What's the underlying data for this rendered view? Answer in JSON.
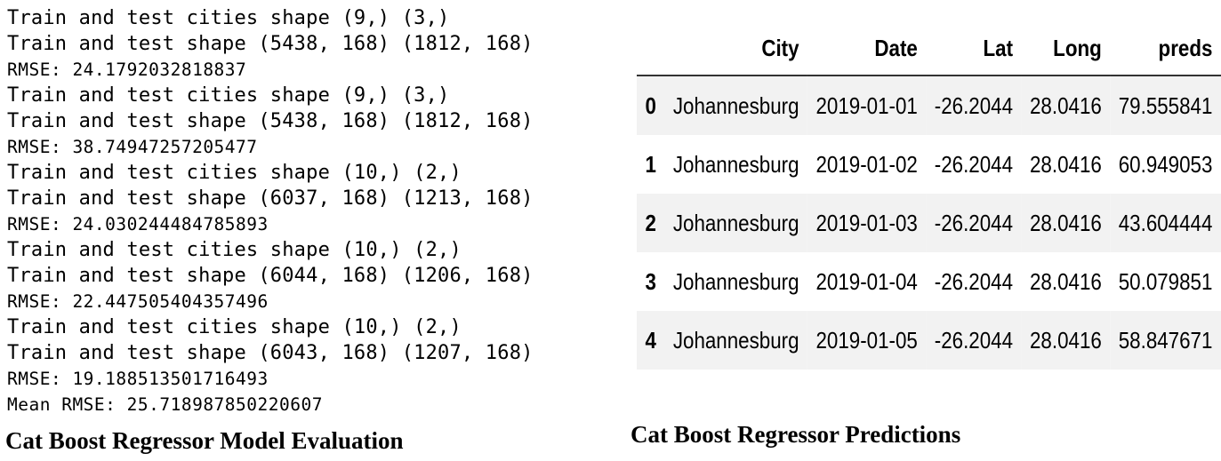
{
  "console": {
    "lines": [
      "Train and test cities shape (9,) (3,)",
      "Train and test shape (5438, 168) (1812, 168)",
      "RMSE: 24.1792032818837",
      "Train and test cities shape (9,) (3,)",
      "Train and test shape (5438, 168) (1812, 168)",
      "RMSE: 38.74947257205477",
      "Train and test cities shape (10,) (2,)",
      "Train and test shape (6037, 168) (1213, 168)",
      "RMSE: 24.030244484785893",
      "Train and test cities shape (10,) (2,)",
      "Train and test shape (6044, 168) (1206, 168)",
      "RMSE: 22.447505404357496",
      "Train and test cities shape (10,) (2,)",
      "Train and test shape (6043, 168) (1207, 168)",
      "RMSE: 19.188513501716493",
      "Mean RMSE: 25.718987850220607"
    ]
  },
  "captions": {
    "left": "Cat Boost Regressor Model Evaluation",
    "right": "Cat Boost Regressor Predictions"
  },
  "table": {
    "columns": [
      "",
      "City",
      "Date",
      "Lat",
      "Long",
      "preds"
    ],
    "rows": [
      {
        "index": "0",
        "City": "Johannesburg",
        "Date": "2019-01-01",
        "Lat": "-26.2044",
        "Long": "28.0416",
        "preds": "79.555841"
      },
      {
        "index": "1",
        "City": "Johannesburg",
        "Date": "2019-01-02",
        "Lat": "-26.2044",
        "Long": "28.0416",
        "preds": "60.949053"
      },
      {
        "index": "2",
        "City": "Johannesburg",
        "Date": "2019-01-03",
        "Lat": "-26.2044",
        "Long": "28.0416",
        "preds": "43.604444"
      },
      {
        "index": "3",
        "City": "Johannesburg",
        "Date": "2019-01-04",
        "Lat": "-26.2044",
        "Long": "28.0416",
        "preds": "50.079851"
      },
      {
        "index": "4",
        "City": "Johannesburg",
        "Date": "2019-01-05",
        "Lat": "-26.2044",
        "Long": "28.0416",
        "preds": "58.847671"
      }
    ]
  }
}
